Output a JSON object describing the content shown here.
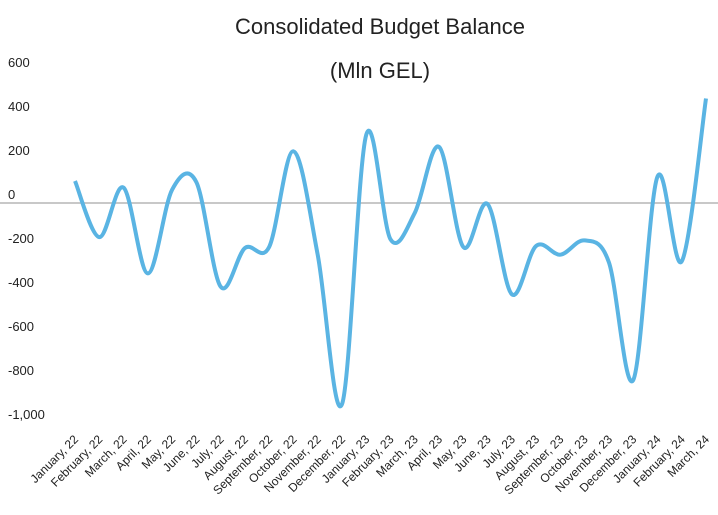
{
  "chart_data": {
    "type": "line",
    "title": "Consolidated Budget Balance",
    "subtitle": "(Mln GEL)",
    "categories": [
      "January, 22",
      "February, 22",
      "March, 22",
      "April, 22",
      "May, 22",
      "June, 22",
      "July, 22",
      "August, 22",
      "September, 22",
      "October, 22",
      "November, 22",
      "December, 22",
      "January, 23",
      "February, 23",
      "March, 23",
      "April, 23",
      "May, 23",
      "June, 23",
      "July, 23",
      "August, 23",
      "September, 23",
      "October, 23",
      "November, 23",
      "December, 23",
      "January, 24",
      "February, 24",
      "March, 24"
    ],
    "series": [
      {
        "color": "#5ab4e3",
        "values": [
          100,
          -155,
          70,
          -320,
          60,
          95,
          -380,
          -205,
          -200,
          235,
          -235,
          -915,
          310,
          -165,
          -45,
          255,
          -200,
          -5,
          -415,
          -195,
          -235,
          -170,
          -270,
          -805,
          120,
          -265,
          475
        ]
      }
    ],
    "ylim": [
      -1000,
      600
    ],
    "yticks": [
      600,
      400,
      200,
      0,
      -200,
      -400,
      -600,
      -800,
      {
        "value": -1000,
        "label": "-1,000"
      }
    ],
    "grid": false
  }
}
